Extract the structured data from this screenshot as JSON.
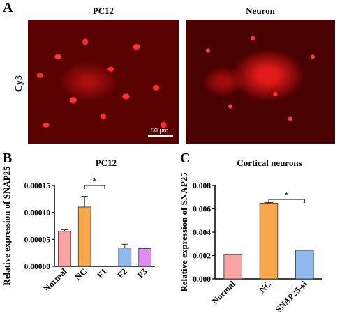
{
  "panelA": {
    "letter": "A",
    "stain_label": "Cy3",
    "images": [
      {
        "title": "PC12"
      },
      {
        "title": "Neuron"
      }
    ],
    "scale_bar": "50 μm"
  },
  "panelB": {
    "letter": "B"
  },
  "panelC": {
    "letter": "C"
  },
  "chart_data": [
    {
      "type": "bar",
      "title": "PC12",
      "ylabel": "Relative expression of SNAP25",
      "xlabel": "",
      "categories": [
        "Normal",
        "NC",
        "F1",
        "F2",
        "F3"
      ],
      "values": [
        6.5e-05,
        0.00011,
        0.0,
        3.4e-05,
        3.3e-05
      ],
      "errors": [
        3e-06,
        2e-05,
        0.0,
        7e-06,
        1e-06
      ],
      "colors": [
        "#f9a3a3",
        "#f7a64a",
        "#f7a64a",
        "#8fb8ee",
        "#e08bf2"
      ],
      "ylim": [
        0,
        0.00015
      ],
      "yticks": [
        "0.00000",
        "0.00005",
        "0.00010",
        "0.00015"
      ],
      "significance": {
        "from": 1,
        "to": 2,
        "label": "*"
      }
    },
    {
      "type": "bar",
      "title": "Cortical neurons",
      "ylabel": "Relative expression of SNAP25",
      "xlabel": "",
      "categories": [
        "Normal",
        "NC",
        "SNAP25-si"
      ],
      "values": [
        0.00208,
        0.00648,
        0.00245
      ],
      "errors": [
        3e-05,
        6e-05,
        2e-05
      ],
      "colors": [
        "#f9a3a3",
        "#f7a64a",
        "#8fb8ee"
      ],
      "ylim": [
        0,
        0.008
      ],
      "yticks": [
        "0.000",
        "0.002",
        "0.004",
        "0.006",
        "0.008"
      ],
      "significance": {
        "from": 1,
        "to": 2,
        "label": "*"
      }
    }
  ]
}
